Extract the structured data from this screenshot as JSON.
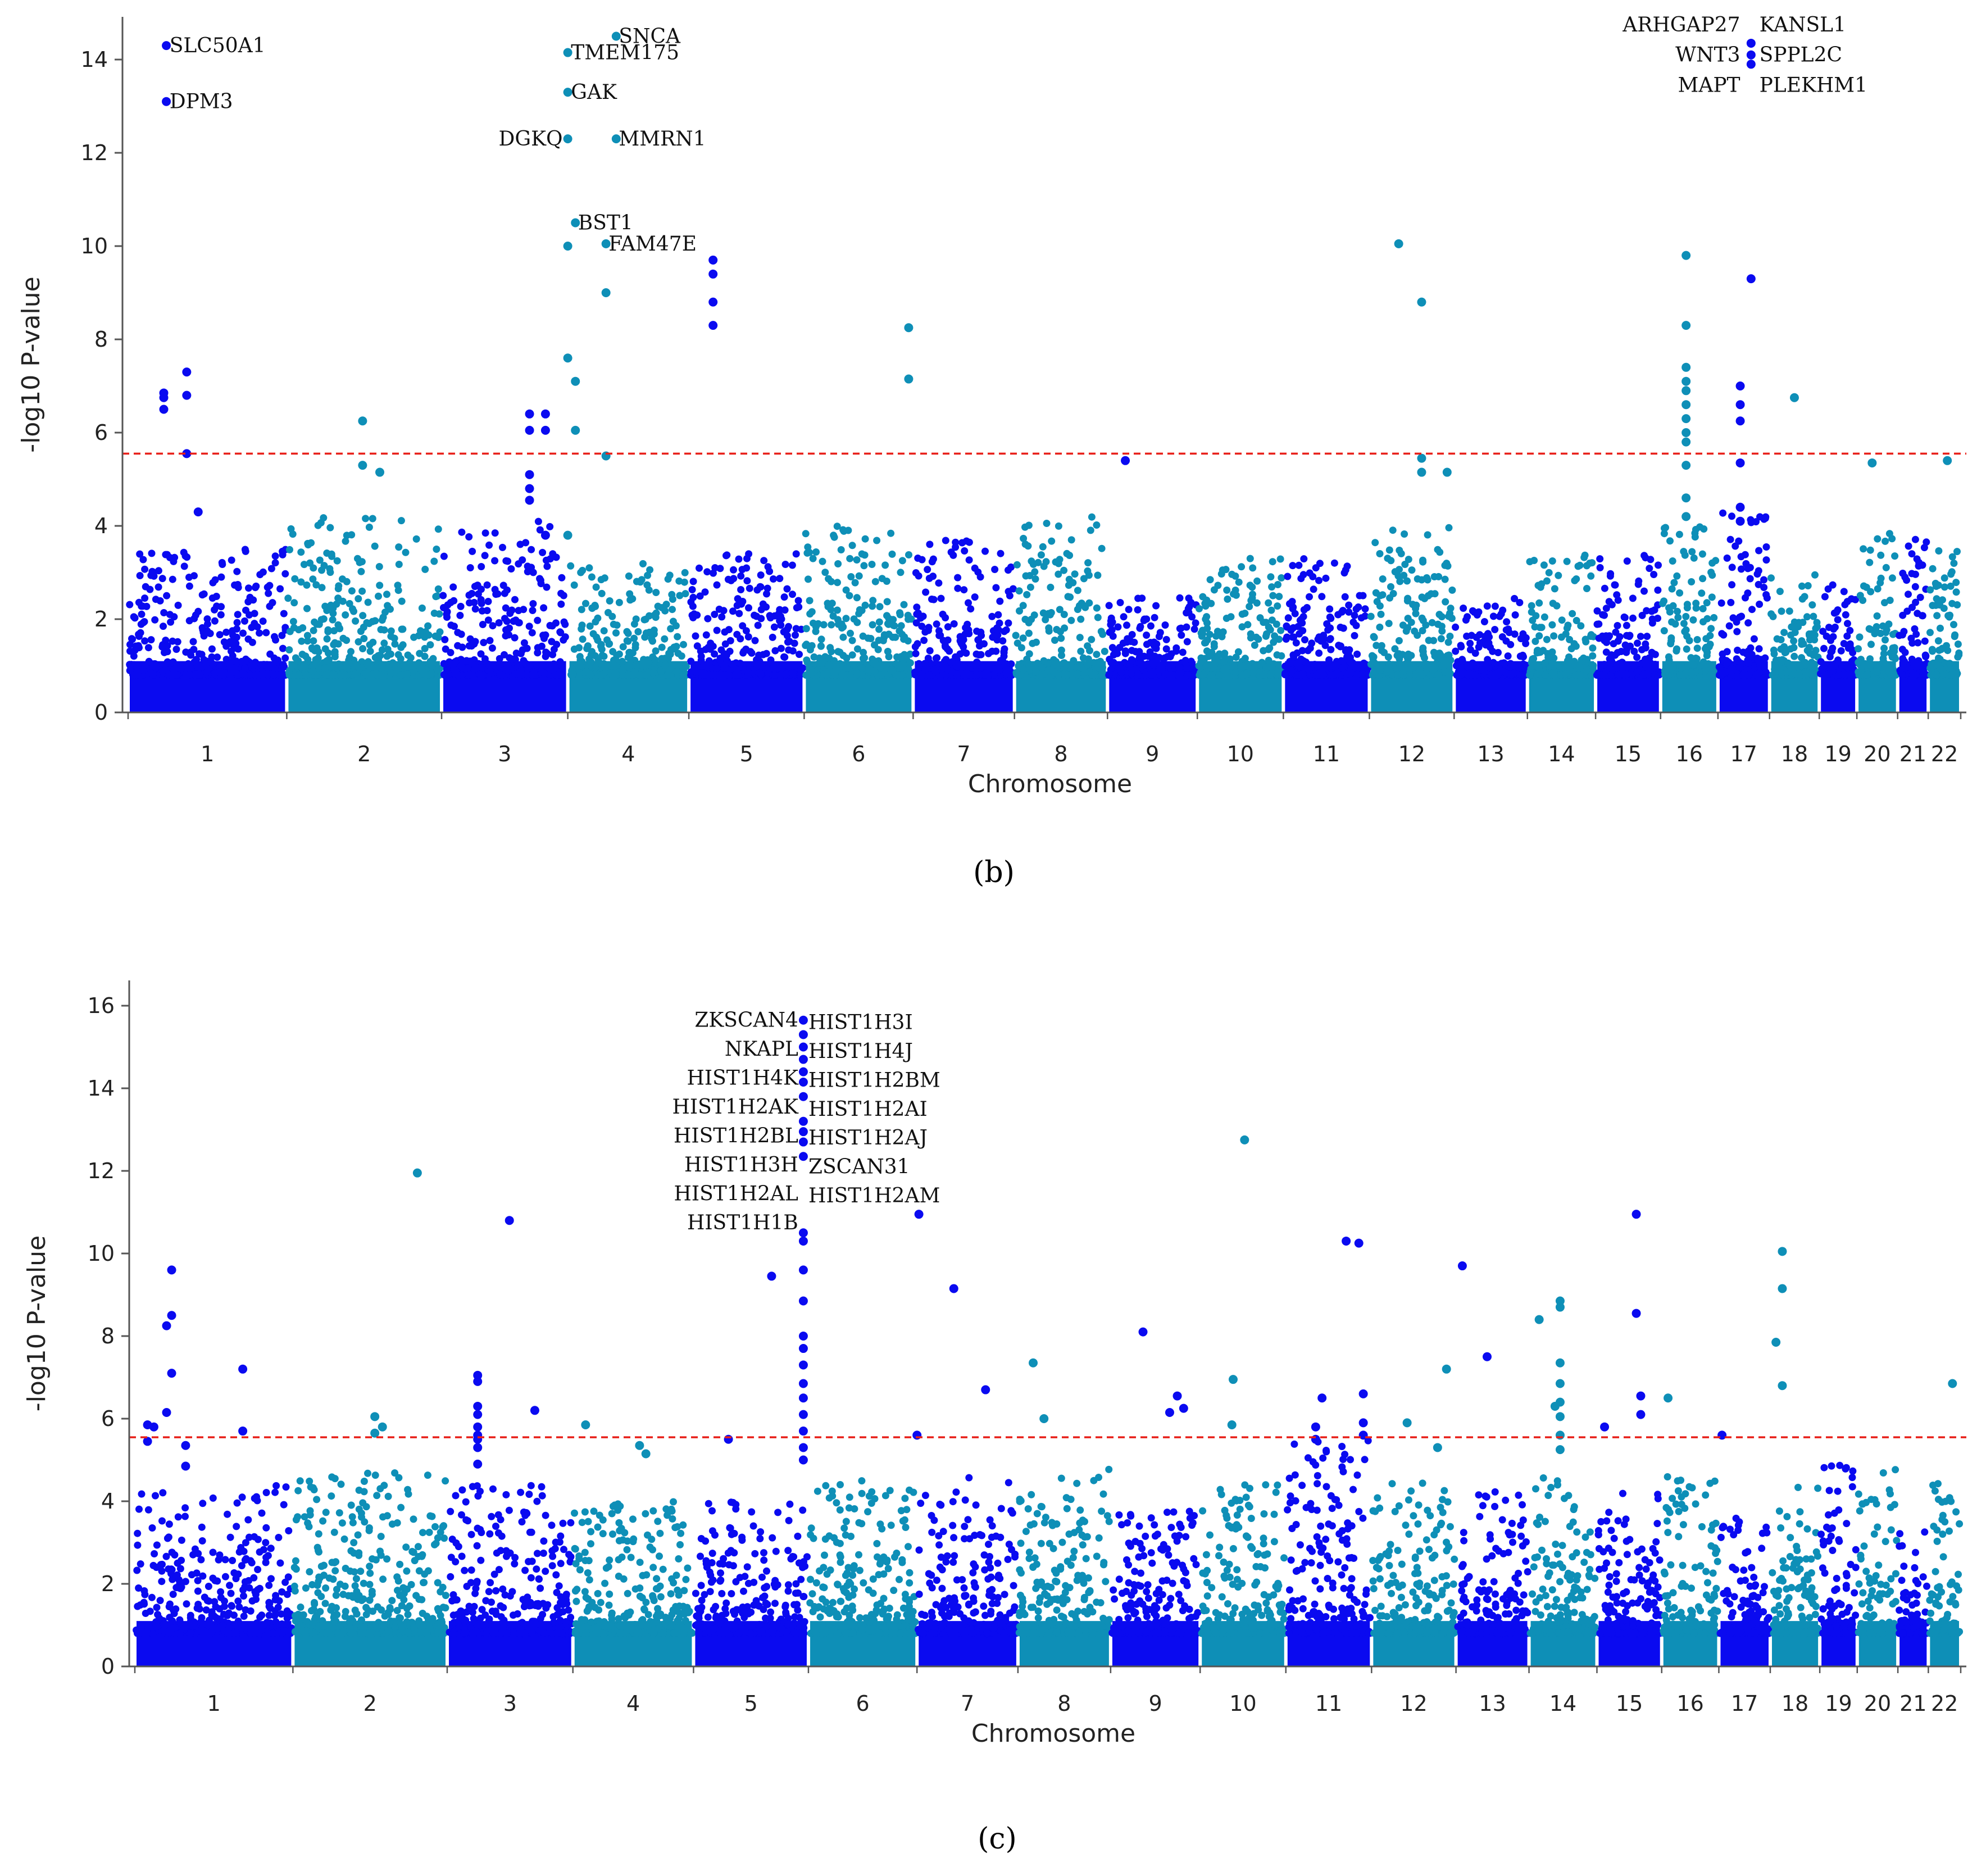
{
  "colors": {
    "dark": "#0a0af0",
    "light": "#0e8fb7",
    "threshold": "#e8201a",
    "axis": "#555555"
  },
  "chart_data": [
    {
      "type": "scatter",
      "panel_caption": "(b)",
      "xlabel": "Chromosome",
      "ylabel": "-log10 P-value",
      "ylim": [
        0,
        15.5
      ],
      "yticks": [
        "0",
        "2",
        "4",
        "6",
        "8",
        "10",
        "12",
        "14"
      ],
      "threshold": 5.55,
      "chromosomes": [
        "1",
        "2",
        "3",
        "4",
        "5",
        "6",
        "7",
        "8",
        "9",
        "10",
        "11",
        "12",
        "13",
        "14",
        "15",
        "16",
        "17",
        "18",
        "19",
        "20",
        "21",
        "22"
      ],
      "chr_bounds": [
        0,
        249,
        492,
        690,
        880,
        1061,
        1232,
        1391,
        1537,
        1678,
        1813,
        1948,
        2081,
        2196,
        2303,
        2405,
        2495,
        2576,
        2654,
        2713,
        2777,
        2825,
        2876
      ],
      "background_peak": [
        3.5,
        4.2,
        4.1,
        3.2,
        3.4,
        4.0,
        3.8,
        4.2,
        2.5,
        3.3,
        3.3,
        4.0,
        2.6,
        3.4,
        3.4,
        4.0,
        4.4,
        3.0,
        2.8,
        4.0,
        3.8,
        3.5
      ],
      "points": [
        {
          "x": 60,
          "y": 14.3
        },
        {
          "x": 60,
          "y": 13.1
        },
        {
          "x": 56,
          "y": 6.85
        },
        {
          "x": 56,
          "y": 6.5
        },
        {
          "x": 56,
          "y": 6.75
        },
        {
          "x": 92,
          "y": 7.3
        },
        {
          "x": 92,
          "y": 6.8
        },
        {
          "x": 92,
          "y": 5.55
        },
        {
          "x": 110,
          "y": 4.3
        },
        {
          "x": 368,
          "y": 6.25
        },
        {
          "x": 368,
          "y": 5.3
        },
        {
          "x": 395,
          "y": 5.15
        },
        {
          "x": 630,
          "y": 6.4
        },
        {
          "x": 630,
          "y": 6.05
        },
        {
          "x": 630,
          "y": 5.1
        },
        {
          "x": 630,
          "y": 4.8
        },
        {
          "x": 630,
          "y": 4.55
        },
        {
          "x": 655,
          "y": 6.4
        },
        {
          "x": 655,
          "y": 6.05
        },
        {
          "x": 655,
          "y": 3.8
        },
        {
          "x": 690,
          "y": 12.3
        },
        {
          "x": 690,
          "y": 10.0
        },
        {
          "x": 690,
          "y": 14.15
        },
        {
          "x": 690,
          "y": 13.3
        },
        {
          "x": 690,
          "y": 7.6
        },
        {
          "x": 690,
          "y": 3.8
        },
        {
          "x": 702,
          "y": 10.5
        },
        {
          "x": 702,
          "y": 7.1
        },
        {
          "x": 702,
          "y": 6.05
        },
        {
          "x": 766,
          "y": 14.5
        },
        {
          "x": 766,
          "y": 12.3
        },
        {
          "x": 750,
          "y": 10.05
        },
        {
          "x": 750,
          "y": 9.0
        },
        {
          "x": 750,
          "y": 5.5
        },
        {
          "x": 918,
          "y": 9.7
        },
        {
          "x": 918,
          "y": 9.4
        },
        {
          "x": 918,
          "y": 8.8
        },
        {
          "x": 918,
          "y": 8.3
        },
        {
          "x": 1225,
          "y": 8.25
        },
        {
          "x": 1225,
          "y": 7.15
        },
        {
          "x": 1565,
          "y": 5.4
        },
        {
          "x": 1994,
          "y": 10.05
        },
        {
          "x": 2030,
          "y": 8.8
        },
        {
          "x": 2030,
          "y": 5.45
        },
        {
          "x": 2030,
          "y": 5.15
        },
        {
          "x": 2070,
          "y": 5.15
        },
        {
          "x": 2445,
          "y": 9.8
        },
        {
          "x": 2445,
          "y": 8.3
        },
        {
          "x": 2445,
          "y": 7.4
        },
        {
          "x": 2445,
          "y": 7.1
        },
        {
          "x": 2445,
          "y": 6.9
        },
        {
          "x": 2445,
          "y": 6.6
        },
        {
          "x": 2445,
          "y": 6.3
        },
        {
          "x": 2445,
          "y": 6.0
        },
        {
          "x": 2445,
          "y": 5.8
        },
        {
          "x": 2445,
          "y": 5.3
        },
        {
          "x": 2445,
          "y": 4.6
        },
        {
          "x": 2445,
          "y": 4.2
        },
        {
          "x": 2530,
          "y": 7.0
        },
        {
          "x": 2530,
          "y": 6.6
        },
        {
          "x": 2530,
          "y": 6.25
        },
        {
          "x": 2530,
          "y": 5.35
        },
        {
          "x": 2530,
          "y": 4.4
        },
        {
          "x": 2530,
          "y": 4.1
        },
        {
          "x": 2547,
          "y": 14.35
        },
        {
          "x": 2547,
          "y": 14.1
        },
        {
          "x": 2547,
          "y": 13.9
        },
        {
          "x": 2547,
          "y": 9.3
        },
        {
          "x": 2615,
          "y": 6.75
        },
        {
          "x": 2737,
          "y": 5.35
        },
        {
          "x": 2855,
          "y": 5.4
        }
      ],
      "labels": [
        {
          "text": "SLC50A1",
          "x": 65,
          "y": 14.3,
          "anchor": "start"
        },
        {
          "text": "DPM3",
          "x": 65,
          "y": 13.1,
          "anchor": "start"
        },
        {
          "text": "SNCA",
          "x": 770,
          "y": 14.5,
          "anchor": "start"
        },
        {
          "text": "TMEM175",
          "x": 695,
          "y": 14.15,
          "anchor": "start"
        },
        {
          "text": "GAK",
          "x": 695,
          "y": 13.3,
          "anchor": "start"
        },
        {
          "text": "DGKQ",
          "x": 682,
          "y": 12.3,
          "anchor": "end"
        },
        {
          "text": "MMRN1",
          "x": 770,
          "y": 12.3,
          "anchor": "start"
        },
        {
          "text": "BST1",
          "x": 706,
          "y": 10.5,
          "anchor": "start"
        },
        {
          "text": "FAM47E",
          "x": 754,
          "y": 10.05,
          "anchor": "start"
        },
        {
          "text": "ARHGAP27",
          "x": 2530,
          "y": 14.75,
          "anchor": "end"
        },
        {
          "text": "WNT3",
          "x": 2530,
          "y": 14.1,
          "anchor": "end"
        },
        {
          "text": "MAPT",
          "x": 2530,
          "y": 13.45,
          "anchor": "end"
        },
        {
          "text": "KANSL1",
          "x": 2560,
          "y": 14.75,
          "anchor": "start"
        },
        {
          "text": "SPPL2C",
          "x": 2560,
          "y": 14.1,
          "anchor": "start"
        },
        {
          "text": "PLEKHM1",
          "x": 2560,
          "y": 13.45,
          "anchor": "start"
        }
      ]
    },
    {
      "type": "scatter",
      "panel_caption": "(c)",
      "xlabel": "Chromosome",
      "ylabel": "-log10 P-value",
      "ylim": [
        0,
        16.6
      ],
      "yticks": [
        "0",
        "2",
        "4",
        "6",
        "8",
        "10",
        "12",
        "14",
        "16"
      ],
      "threshold": 5.55,
      "chromosomes": [
        "1",
        "2",
        "3",
        "4",
        "5",
        "6",
        "7",
        "8",
        "9",
        "10",
        "11",
        "12",
        "13",
        "14",
        "15",
        "16",
        "17",
        "18",
        "19",
        "20",
        "21",
        "22"
      ],
      "chr_bounds": [
        0,
        249,
        492,
        690,
        880,
        1061,
        1232,
        1391,
        1537,
        1678,
        1813,
        1948,
        2081,
        2196,
        2303,
        2405,
        2495,
        2576,
        2654,
        2713,
        2777,
        2825,
        2876
      ],
      "background_peak": [
        4.4,
        4.7,
        4.4,
        4.0,
        4.0,
        4.5,
        4.6,
        4.8,
        3.8,
        4.5,
        5.5,
        4.5,
        4.3,
        4.8,
        4.2,
        4.6,
        3.6,
        4.4,
        4.9,
        4.8,
        3.5,
        4.5
      ],
      "points": [
        {
          "x": 20,
          "y": 5.85
        },
        {
          "x": 20,
          "y": 5.45
        },
        {
          "x": 30,
          "y": 5.8
        },
        {
          "x": 58,
          "y": 9.6
        },
        {
          "x": 58,
          "y": 8.5
        },
        {
          "x": 58,
          "y": 7.1
        },
        {
          "x": 50,
          "y": 8.25
        },
        {
          "x": 50,
          "y": 6.15
        },
        {
          "x": 80,
          "y": 5.35
        },
        {
          "x": 80,
          "y": 4.85
        },
        {
          "x": 170,
          "y": 7.2
        },
        {
          "x": 170,
          "y": 5.7
        },
        {
          "x": 378,
          "y": 6.05
        },
        {
          "x": 378,
          "y": 5.65
        },
        {
          "x": 390,
          "y": 5.8
        },
        {
          "x": 445,
          "y": 11.95
        },
        {
          "x": 540,
          "y": 7.05
        },
        {
          "x": 540,
          "y": 6.9
        },
        {
          "x": 540,
          "y": 6.3
        },
        {
          "x": 540,
          "y": 6.1
        },
        {
          "x": 540,
          "y": 5.8
        },
        {
          "x": 540,
          "y": 5.6
        },
        {
          "x": 540,
          "y": 5.5
        },
        {
          "x": 540,
          "y": 5.3
        },
        {
          "x": 540,
          "y": 4.9
        },
        {
          "x": 590,
          "y": 10.8
        },
        {
          "x": 630,
          "y": 6.2
        },
        {
          "x": 710,
          "y": 5.85
        },
        {
          "x": 795,
          "y": 5.35
        },
        {
          "x": 805,
          "y": 5.15
        },
        {
          "x": 935,
          "y": 5.5
        },
        {
          "x": 1003,
          "y": 9.45
        },
        {
          "x": 1053,
          "y": 15.65
        },
        {
          "x": 1053,
          "y": 15.3
        },
        {
          "x": 1053,
          "y": 15.0
        },
        {
          "x": 1053,
          "y": 14.7
        },
        {
          "x": 1053,
          "y": 14.4
        },
        {
          "x": 1053,
          "y": 14.15
        },
        {
          "x": 1053,
          "y": 13.8
        },
        {
          "x": 1053,
          "y": 13.2
        },
        {
          "x": 1053,
          "y": 12.95
        },
        {
          "x": 1053,
          "y": 12.7
        },
        {
          "x": 1053,
          "y": 12.35
        },
        {
          "x": 1053,
          "y": 10.5
        },
        {
          "x": 1053,
          "y": 10.3
        },
        {
          "x": 1053,
          "y": 9.6
        },
        {
          "x": 1053,
          "y": 8.85
        },
        {
          "x": 1053,
          "y": 8.0
        },
        {
          "x": 1053,
          "y": 7.7
        },
        {
          "x": 1053,
          "y": 7.3
        },
        {
          "x": 1053,
          "y": 6.85
        },
        {
          "x": 1053,
          "y": 6.5
        },
        {
          "x": 1053,
          "y": 6.1
        },
        {
          "x": 1053,
          "y": 5.7
        },
        {
          "x": 1053,
          "y": 5.3
        },
        {
          "x": 1053,
          "y": 5.0
        },
        {
          "x": 1232,
          "y": 5.6
        },
        {
          "x": 1235,
          "y": 10.95
        },
        {
          "x": 1290,
          "y": 9.15
        },
        {
          "x": 1340,
          "y": 6.7
        },
        {
          "x": 1415,
          "y": 7.35
        },
        {
          "x": 1432,
          "y": 6.0
        },
        {
          "x": 1588,
          "y": 8.1
        },
        {
          "x": 1630,
          "y": 6.15
        },
        {
          "x": 1642,
          "y": 6.55
        },
        {
          "x": 1652,
          "y": 6.25
        },
        {
          "x": 1748,
          "y": 12.75
        },
        {
          "x": 1730,
          "y": 6.95
        },
        {
          "x": 1728,
          "y": 5.85
        },
        {
          "x": 1860,
          "y": 5.8
        },
        {
          "x": 1860,
          "y": 5.5
        },
        {
          "x": 1870,
          "y": 6.5
        },
        {
          "x": 1908,
          "y": 10.3
        },
        {
          "x": 1928,
          "y": 10.25
        },
        {
          "x": 1935,
          "y": 6.6
        },
        {
          "x": 1935,
          "y": 5.9
        },
        {
          "x": 1935,
          "y": 5.6
        },
        {
          "x": 2004,
          "y": 5.9
        },
        {
          "x": 2052,
          "y": 5.3
        },
        {
          "x": 2066,
          "y": 7.2
        },
        {
          "x": 2091,
          "y": 9.7
        },
        {
          "x": 2130,
          "y": 7.5
        },
        {
          "x": 2212,
          "y": 8.4
        },
        {
          "x": 2245,
          "y": 8.85
        },
        {
          "x": 2245,
          "y": 8.7
        },
        {
          "x": 2245,
          "y": 7.35
        },
        {
          "x": 2245,
          "y": 6.85
        },
        {
          "x": 2245,
          "y": 6.4
        },
        {
          "x": 2245,
          "y": 6.05
        },
        {
          "x": 2245,
          "y": 5.6
        },
        {
          "x": 2245,
          "y": 5.25
        },
        {
          "x": 2237,
          "y": 6.3
        },
        {
          "x": 2315,
          "y": 5.8
        },
        {
          "x": 2365,
          "y": 10.95
        },
        {
          "x": 2365,
          "y": 8.55
        },
        {
          "x": 2372,
          "y": 6.55
        },
        {
          "x": 2372,
          "y": 6.1
        },
        {
          "x": 2415,
          "y": 6.5
        },
        {
          "x": 2500,
          "y": 5.6
        },
        {
          "x": 2595,
          "y": 10.05
        },
        {
          "x": 2595,
          "y": 9.15
        },
        {
          "x": 2585,
          "y": 7.85
        },
        {
          "x": 2595,
          "y": 6.8
        },
        {
          "x": 2863,
          "y": 6.85
        }
      ],
      "labels": [
        {
          "text": "ZKSCAN4",
          "x": 1045,
          "y": 15.65,
          "anchor": "end"
        },
        {
          "text": "NKAPL",
          "x": 1045,
          "y": 14.95,
          "anchor": "end"
        },
        {
          "text": "HIST1H4K",
          "x": 1045,
          "y": 14.25,
          "anchor": "end"
        },
        {
          "text": "HIST1H2AK",
          "x": 1045,
          "y": 13.55,
          "anchor": "end"
        },
        {
          "text": "HIST1H2BL",
          "x": 1045,
          "y": 12.85,
          "anchor": "end"
        },
        {
          "text": "HIST1H3H",
          "x": 1045,
          "y": 12.15,
          "anchor": "end"
        },
        {
          "text": "HIST1H2AL",
          "x": 1045,
          "y": 11.45,
          "anchor": "end"
        },
        {
          "text": "HIST1H1B",
          "x": 1045,
          "y": 10.75,
          "anchor": "end"
        },
        {
          "text": "HIST1H3I",
          "x": 1061,
          "y": 15.6,
          "anchor": "start"
        },
        {
          "text": "HIST1H4J",
          "x": 1061,
          "y": 14.9,
          "anchor": "start"
        },
        {
          "text": "HIST1H2BM",
          "x": 1061,
          "y": 14.2,
          "anchor": "start"
        },
        {
          "text": "HIST1H2AI",
          "x": 1061,
          "y": 13.5,
          "anchor": "start"
        },
        {
          "text": "HIST1H2AJ",
          "x": 1061,
          "y": 12.8,
          "anchor": "start"
        },
        {
          "text": "ZSCAN31",
          "x": 1061,
          "y": 12.1,
          "anchor": "start"
        },
        {
          "text": "HIST1H2AM",
          "x": 1061,
          "y": 11.4,
          "anchor": "start"
        }
      ]
    }
  ]
}
